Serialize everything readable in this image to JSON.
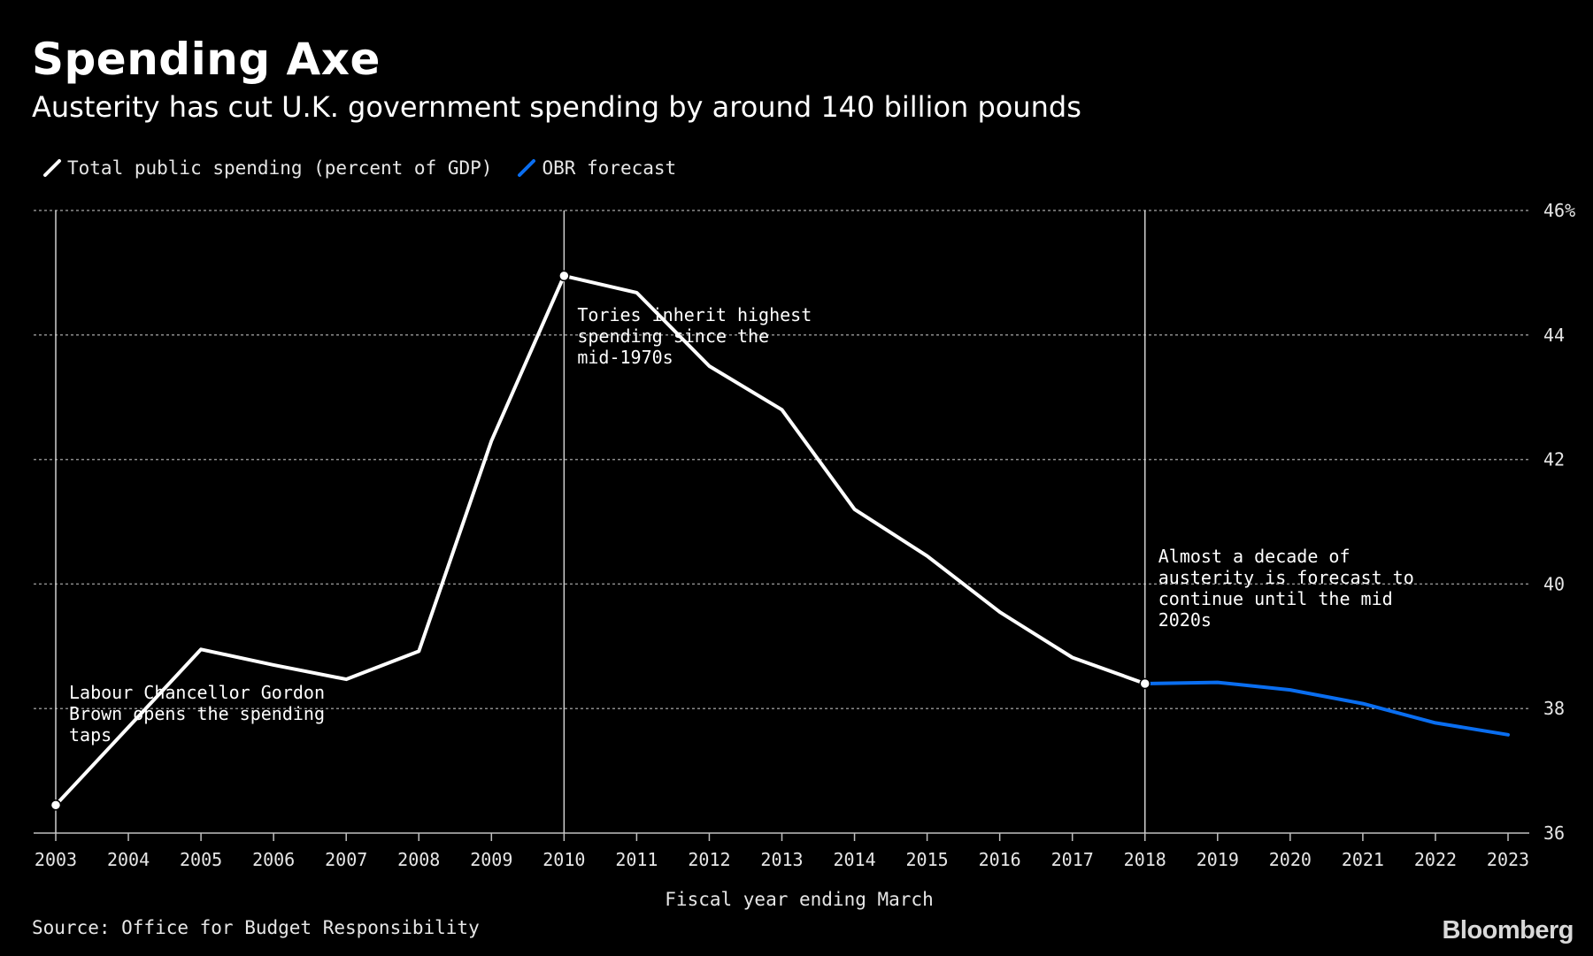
{
  "title": "Spending Axe",
  "subtitle": "Austerity has cut U.K. government spending by around 140 billion pounds",
  "source": "Source: Office for Budget Responsibility",
  "logo": "Bloomberg",
  "colors": {
    "background": "#000000",
    "actual": "#ffffff",
    "forecast": "#0a6ef0",
    "grid": "#8c8c8c"
  },
  "chart_data": {
    "type": "line",
    "xlabel": "Fiscal year ending March",
    "ylabel": "",
    "ylim": [
      36,
      46
    ],
    "yticks": [
      36,
      38,
      40,
      42,
      44,
      46
    ],
    "ytick_labels": [
      "36",
      "38",
      "40",
      "42",
      "44",
      "46%"
    ],
    "x": [
      2003,
      2004,
      2005,
      2006,
      2007,
      2008,
      2009,
      2010,
      2011,
      2012,
      2013,
      2014,
      2015,
      2016,
      2017,
      2018,
      2019,
      2020,
      2021,
      2022,
      2023
    ],
    "grid": true,
    "legend_position": "top-left",
    "series": [
      {
        "name": "Total public spending (percent of GDP)",
        "color": "#ffffff",
        "x": [
          2003,
          2004,
          2005,
          2006,
          2007,
          2008,
          2009,
          2010,
          2011,
          2012,
          2013,
          2014,
          2015,
          2016,
          2017,
          2018
        ],
        "values": [
          36.45,
          37.7,
          38.95,
          38.7,
          38.47,
          38.92,
          42.3,
          44.95,
          44.68,
          43.5,
          42.8,
          41.2,
          40.45,
          39.55,
          38.82,
          38.4
        ]
      },
      {
        "name": "OBR forecast",
        "color": "#0a6ef0",
        "x": [
          2018,
          2019,
          2020,
          2021,
          2022,
          2023
        ],
        "values": [
          38.4,
          38.42,
          38.3,
          38.08,
          37.77,
          37.58
        ]
      }
    ],
    "markers": [
      2003,
      2010,
      2018
    ],
    "annotations": [
      {
        "x": 2003,
        "lines": [
          "Labour Chancellor Gordon",
          "Brown opens the spending",
          "taps"
        ]
      },
      {
        "x": 2010,
        "lines": [
          "Tories inherit highest",
          "spending since the",
          "mid-1970s"
        ]
      },
      {
        "x": 2018,
        "lines": [
          "Almost a decade of",
          "austerity is forecast to",
          "continue until the mid",
          "2020s"
        ]
      }
    ]
  }
}
